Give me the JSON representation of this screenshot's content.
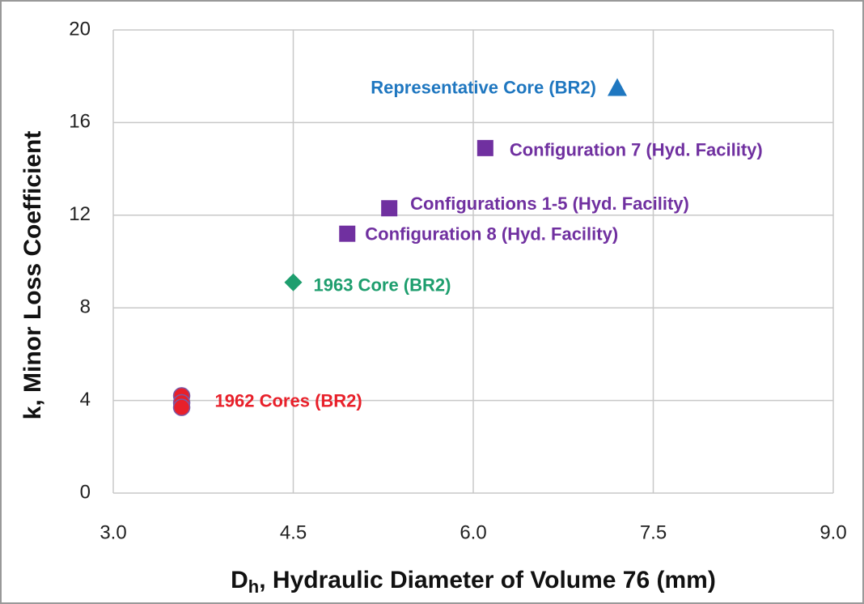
{
  "chart_data": {
    "type": "scatter",
    "y_label": "k, Minor Loss Coefficient",
    "x_label": {
      "main": "D",
      "sub": "h",
      "rest": ", Hydraulic Diameter of Volume 76 (mm)"
    },
    "xlim": [
      3,
      9
    ],
    "xticks": [
      {
        "value": 3,
        "label": "3.0"
      },
      4.5,
      {
        "value": 6,
        "label": "6.0"
      },
      7.5,
      {
        "value": 9,
        "label": "9.0"
      }
    ],
    "ylim": [
      0,
      20
    ],
    "yticks": [
      0,
      4,
      8,
      12,
      16,
      20
    ],
    "grid": true,
    "series": [
      {
        "name": "Representative Core (BR2)",
        "color": "#1f77c0",
        "marker": "triangle",
        "x": [
          7.2
        ],
        "values": [
          17.5
        ]
      },
      {
        "name": "Configuration 7 (Hyd. Facility)",
        "color": "#7030a0",
        "marker": "square",
        "x": [
          6.1
        ],
        "values": [
          14.9
        ]
      },
      {
        "name": "Configurations 1-5 (Hyd. Facility)",
        "color": "#7030a0",
        "marker": "square",
        "x": [
          5.3
        ],
        "values": [
          12.3
        ]
      },
      {
        "name": "Configuration 8 (Hyd. Facility)",
        "color": "#7030a0",
        "marker": "square",
        "x": [
          4.95
        ],
        "values": [
          11.2
        ]
      },
      {
        "name": "1963 Core (BR2)",
        "color": "#1e9e6e",
        "marker": "diamond",
        "x": [
          4.5
        ],
        "values": [
          9.1
        ]
      },
      {
        "name": "1962 Cores (BR2)",
        "color": "#e8202a",
        "marker": "circle",
        "x": [
          3.57,
          3.57,
          3.57
        ],
        "values": [
          4.2,
          3.9,
          3.7
        ]
      }
    ]
  }
}
